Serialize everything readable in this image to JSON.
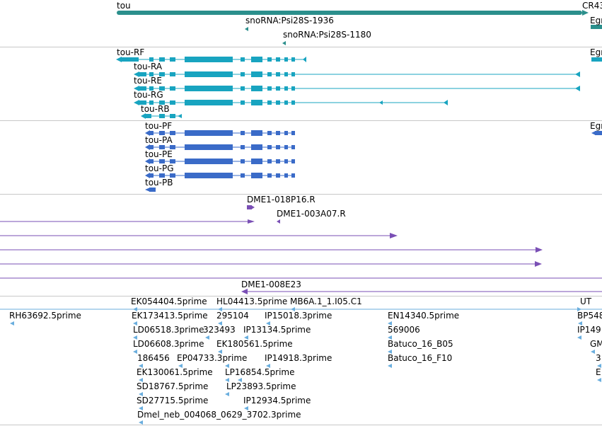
{
  "colors": {
    "gene": "#2b8f8c",
    "transcript": "#18a4c0",
    "protein": "#3a6bc8",
    "clone": "#7a4fb5",
    "est": "#6aaede",
    "line": "#7a4fb5"
  },
  "genes": {
    "tou": "tou",
    "cr43": "CR43",
    "egr1": "Egr",
    "snorna1936": "snoRNA:Psi28S-1936",
    "snorna1180": "snoRNA:Psi28S-1180"
  },
  "transcripts": {
    "rf": "tou-RF",
    "ra": "tou-RA",
    "re": "tou-RE",
    "rg": "tou-RG",
    "rb": "tou-RB",
    "egr2": "Egr"
  },
  "proteins": {
    "pf": "tou-PF",
    "pa": "tou-PA",
    "pe": "tou-PE",
    "pg": "tou-PG",
    "pb": "tou-PB",
    "egr3": "Egr"
  },
  "clones": {
    "c1": "DME1-018P16.R",
    "c2": "DME1-003A07.R",
    "c3": "DME1-008E23"
  },
  "ests": {
    "rh63692": "RH63692.5prime",
    "ek054404": "EK054404.5prime",
    "hl04413": "HL04413.5prime",
    "mb6a": "MB6A.1_1.I05.C1",
    "ut": "UT",
    "ek173413": "EK173413.5prime",
    "n295104": "295104",
    "ip15018": "IP15018.3prime",
    "en14340": "EN14340.5prime",
    "bp548": "BP548",
    "ld06518": "LD06518.3prime",
    "n323493": "323493",
    "ip13134": "IP13134.5prime",
    "n569006": "569006",
    "ip149": "IP149",
    "ld06608": "LD06608.3prime",
    "ek180561": "EK180561.5prime",
    "batuco05": "Batuco_16_B05",
    "gm": "GM",
    "n186456": "186456",
    "ep04733": "EP04733.3prime",
    "ip14918": "IP14918.3prime",
    "batuco10": "Batuco_16_F10",
    "n3": "3",
    "ek130061": "EK130061.5prime",
    "lp16854": "LP16854.5prime",
    "e": "E",
    "sd18767": "SD18767.5prime",
    "lp23893": "LP23893.5prime",
    "sd27715": "SD27715.5prime",
    "ip12934": "IP12934.5prime",
    "dmel": "Dmel_neb_004068_0629_3702.3prime"
  }
}
